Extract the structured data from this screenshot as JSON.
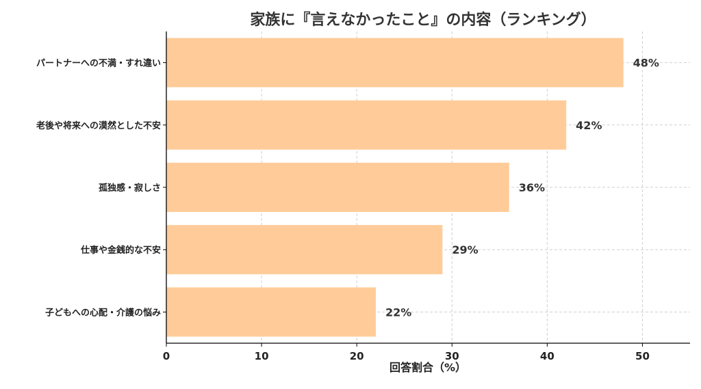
{
  "chart_data": {
    "type": "bar",
    "orientation": "horizontal",
    "title": "家族に『言えなかったこと』の内容（ランキング）",
    "xlabel": "回答割合（%）",
    "ylabel": "",
    "xlim": [
      0,
      55
    ],
    "xticks": [
      0,
      10,
      20,
      30,
      40,
      50
    ],
    "grid": true,
    "categories": [
      "パートナーへの不満・すれ違い",
      "老後や将来への漠然とした不安",
      "孤独感・寂しさ",
      "仕事や金銭的な不安",
      "子どもへの心配・介護の悩み"
    ],
    "values": [
      48,
      42,
      36,
      29,
      22
    ],
    "value_labels": [
      "48%",
      "42%",
      "36%",
      "29%",
      "22%"
    ],
    "bar_color": "#FFCC99"
  }
}
